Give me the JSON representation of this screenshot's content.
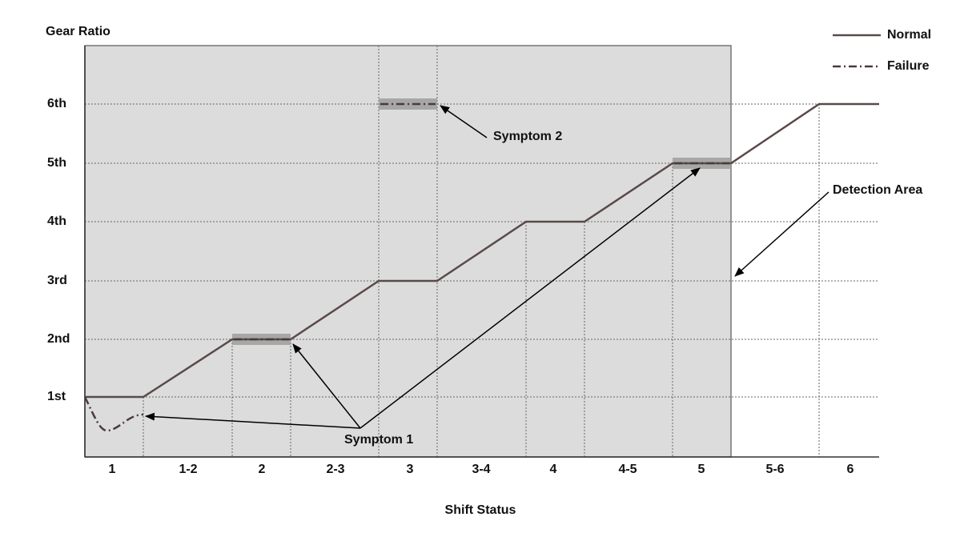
{
  "y_axis_label": "Gear Ratio",
  "x_axis_label": "Shift Status",
  "y_ticks": [
    "1st",
    "2nd",
    "3rd",
    "4th",
    "5th",
    "6th"
  ],
  "x_categories": [
    "1",
    "1-2",
    "2",
    "2-3",
    "3",
    "3-4",
    "4",
    "4-5",
    "5",
    "5-6",
    "6"
  ],
  "legend": [
    "Normal",
    "Failure"
  ],
  "annotations": {
    "symptom_1": "Symptom 1",
    "symptom_2": "Symptom 2",
    "detection_area": "Detection Area"
  }
}
